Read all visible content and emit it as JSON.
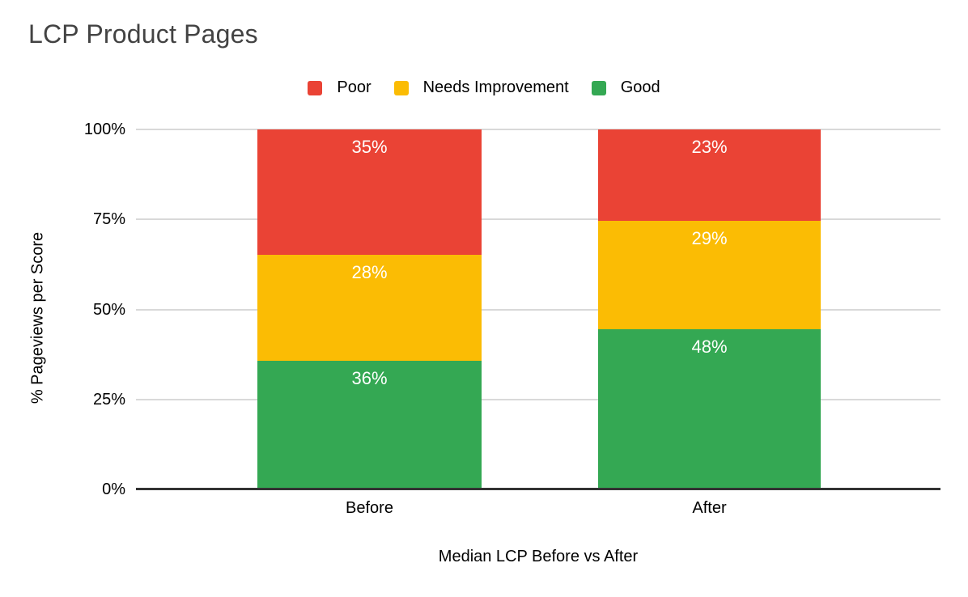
{
  "title": "LCP Product Pages",
  "colors": {
    "poor": "#EA4335",
    "needs_improvement": "#FBBC04",
    "good": "#34A853",
    "title_text": "#434343",
    "axis_line": "#333333",
    "gridline": "#D9D9D9",
    "bar_label_text": "#FFFFFF"
  },
  "chart_data": {
    "type": "bar",
    "stacked": true,
    "title": "LCP Product Pages",
    "categories": [
      "Before",
      "After"
    ],
    "series": [
      {
        "name": "Poor",
        "color": "#EA4335",
        "values": [
          35,
          23
        ]
      },
      {
        "name": "Needs Improvement",
        "color": "#FBBC04",
        "values": [
          28,
          29
        ]
      },
      {
        "name": "Good",
        "color": "#34A853",
        "values": [
          36,
          48
        ]
      }
    ],
    "segment_labels": {
      "Before": {
        "Poor": "35%",
        "Needs Improvement": "28%",
        "Good": "36%"
      },
      "After": {
        "Poor": "23%",
        "Needs Improvement": "29%",
        "Good": "48%"
      }
    },
    "xlabel": "Median LCP Before vs After",
    "ylabel": "% Pageviews per Score",
    "y_ticks": [
      "0%",
      "25%",
      "50%",
      "75%",
      "100%"
    ],
    "y_tick_values": [
      0,
      25,
      50,
      75,
      100
    ],
    "ylim": [
      0,
      100
    ],
    "grid": true,
    "legend_position": "top",
    "value_suffix": "%"
  }
}
